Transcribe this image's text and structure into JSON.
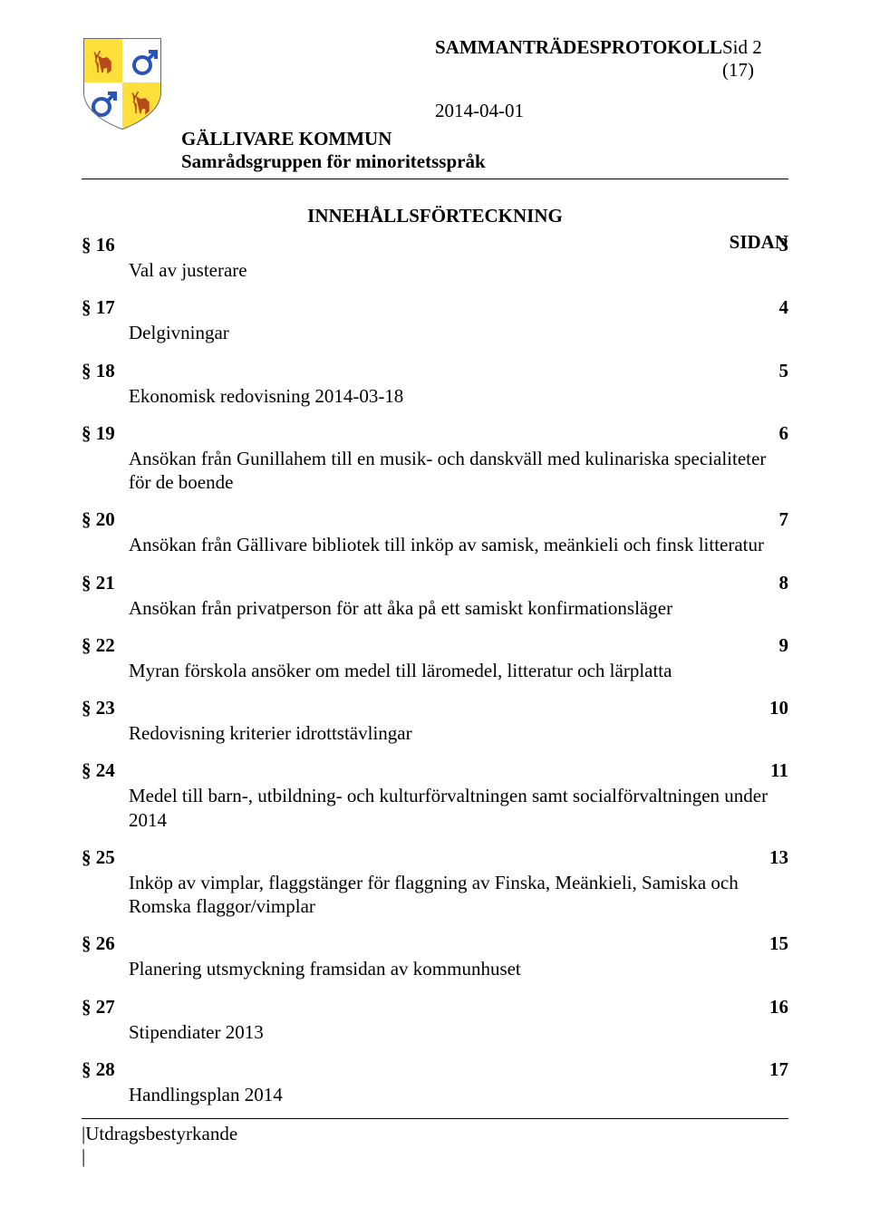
{
  "header": {
    "doc_title": "SAMMANTRÄDESPROTOKOLL",
    "page_indicator": "Sid 2 (17)",
    "date": "2014-04-01",
    "org_name": "GÄLLIVARE KOMMUN",
    "org_sub": "Samrådsgruppen för minoritetsspråk"
  },
  "logo": {
    "shield_border": "#6a6a6a",
    "q1_bg": "#ffdf3a",
    "q2_bg": "#ffffff",
    "q3_bg": "#ffffff",
    "q4_bg": "#ffdf3a",
    "deer_color": "#b54a1a",
    "symbol_color": "#2a54b8",
    "symbol_stroke": "#2a54b8"
  },
  "toc": {
    "title": "INNEHÅLLSFÖRTECKNING",
    "page_heading": "SIDAN",
    "items": [
      {
        "section": "§ 16",
        "page": "3",
        "desc": "Val av justerare"
      },
      {
        "section": "§ 17",
        "page": "4",
        "desc": "Delgivningar"
      },
      {
        "section": "§ 18",
        "page": "5",
        "desc": "Ekonomisk redovisning 2014-03-18"
      },
      {
        "section": "§ 19",
        "page": "6",
        "desc": "Ansökan från Gunillahem till en musik- och danskväll med kulinariska specialiteter för de boende"
      },
      {
        "section": "§ 20",
        "page": "7",
        "desc": "Ansökan från Gällivare bibliotek till inköp av samisk, meänkieli och finsk litteratur"
      },
      {
        "section": "§ 21",
        "page": "8",
        "desc": "Ansökan från privatperson för att åka på ett samiskt konfirmationsläger"
      },
      {
        "section": "§ 22",
        "page": "9",
        "desc": "Myran förskola ansöker om medel till läromedel, litteratur och lärplatta"
      },
      {
        "section": "§ 23",
        "page": "10",
        "desc": "Redovisning kriterier idrottstävlingar"
      },
      {
        "section": "§ 24",
        "page": "11",
        "desc": "Medel till barn-, utbildning- och kulturförvaltningen samt socialförvaltningen under 2014"
      },
      {
        "section": "§ 25",
        "page": "13",
        "desc": "Inköp av vimplar, flaggstänger för flaggning av Finska, Meänkieli, Samiska och Romska flaggor/vimplar"
      },
      {
        "section": "§ 26",
        "page": "15",
        "desc": "Planering utsmyckning framsidan av kommunhuset"
      },
      {
        "section": "§ 27",
        "page": "16",
        "desc": "Stipendiater 2013"
      },
      {
        "section": "§ 28",
        "page": "17",
        "desc": "Handlingsplan 2014"
      }
    ]
  },
  "footer": {
    "label": "|Utdragsbestyrkande",
    "bar": "|"
  }
}
